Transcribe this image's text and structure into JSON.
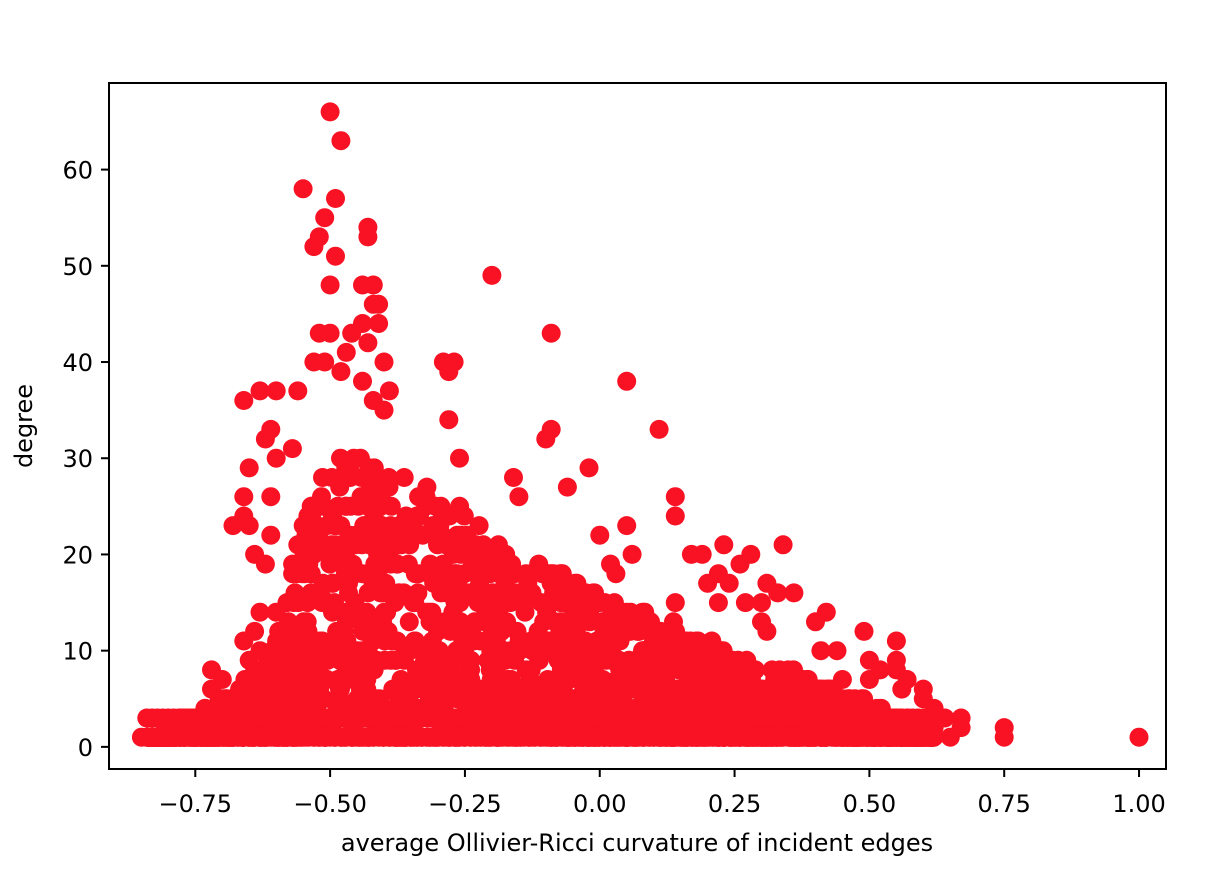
{
  "chart_data": {
    "type": "scatter",
    "title": "",
    "xlabel": "average Ollivier-Ricci curvature of incident edges",
    "ylabel": "degree",
    "xlim": [
      -0.91,
      1.05
    ],
    "ylim": [
      -2.3,
      69
    ],
    "x_ticks": [
      -0.75,
      -0.5,
      -0.25,
      0.0,
      0.25,
      0.5,
      0.75,
      1.0
    ],
    "x_tick_labels": [
      "−0.75",
      "−0.50",
      "−0.25",
      "0.00",
      "0.25",
      "0.50",
      "0.75",
      "1.00"
    ],
    "y_ticks": [
      0,
      10,
      20,
      30,
      40,
      50,
      60
    ],
    "y_tick_labels": [
      "0",
      "10",
      "20",
      "30",
      "40",
      "50",
      "60"
    ],
    "grid": false,
    "legend": "none",
    "marker_color": "#f81223",
    "outliers": [
      [
        -0.5,
        66
      ],
      [
        -0.48,
        63
      ],
      [
        -0.55,
        58
      ],
      [
        -0.49,
        57
      ],
      [
        -0.51,
        55
      ],
      [
        -0.52,
        53
      ],
      [
        -0.53,
        52
      ],
      [
        -0.43,
        54
      ],
      [
        -0.43,
        53
      ],
      [
        -0.49,
        51
      ],
      [
        -0.5,
        48
      ],
      [
        -0.44,
        48
      ],
      [
        -0.42,
        48
      ],
      [
        -0.42,
        46
      ],
      [
        -0.41,
        46
      ],
      [
        -0.41,
        44
      ],
      [
        -0.44,
        44
      ],
      [
        -0.46,
        43
      ],
      [
        -0.52,
        43
      ],
      [
        -0.5,
        43
      ],
      [
        -0.47,
        41
      ],
      [
        -0.43,
        42
      ],
      [
        -0.4,
        40
      ],
      [
        -0.53,
        40
      ],
      [
        -0.51,
        40
      ],
      [
        -0.48,
        39
      ],
      [
        -0.44,
        38
      ],
      [
        -0.2,
        49
      ],
      [
        -0.09,
        43
      ],
      [
        0.05,
        38
      ],
      [
        0.11,
        33
      ],
      [
        -0.29,
        40
      ],
      [
        -0.27,
        40
      ],
      [
        -0.28,
        39
      ],
      [
        -0.6,
        37
      ],
      [
        -0.63,
        37
      ],
      [
        -0.56,
        37
      ],
      [
        -0.66,
        36
      ],
      [
        -0.39,
        37
      ],
      [
        -0.42,
        36
      ],
      [
        -0.4,
        35
      ],
      [
        -0.62,
        32
      ],
      [
        -0.61,
        33
      ],
      [
        -0.6,
        30
      ],
      [
        -0.57,
        31
      ],
      [
        -0.65,
        29
      ],
      [
        -0.28,
        34
      ],
      [
        -0.26,
        30
      ],
      [
        -0.09,
        33
      ],
      [
        -0.1,
        32
      ],
      [
        -0.02,
        29
      ],
      [
        -0.06,
        27
      ],
      [
        -0.16,
        28
      ],
      [
        -0.15,
        26
      ],
      [
        -0.66,
        26
      ],
      [
        -0.61,
        26
      ],
      [
        -0.66,
        24
      ],
      [
        -0.68,
        23
      ],
      [
        -0.65,
        23
      ],
      [
        -0.61,
        22
      ],
      [
        -0.64,
        20
      ],
      [
        -0.62,
        19
      ],
      [
        -0.56,
        21
      ],
      [
        0.14,
        26
      ],
      [
        0.14,
        24
      ],
      [
        0.05,
        23
      ],
      [
        0.06,
        20
      ],
      [
        0.0,
        22
      ],
      [
        0.17,
        20
      ],
      [
        0.19,
        20
      ],
      [
        0.23,
        21
      ],
      [
        0.34,
        21
      ],
      [
        0.28,
        20
      ],
      [
        0.26,
        19
      ],
      [
        0.02,
        19
      ],
      [
        0.03,
        18
      ],
      [
        0.22,
        18
      ],
      [
        0.2,
        17
      ],
      [
        0.24,
        17
      ],
      [
        0.31,
        17
      ],
      [
        0.33,
        16
      ],
      [
        0.36,
        16
      ],
      [
        0.14,
        15
      ],
      [
        0.22,
        15
      ],
      [
        0.27,
        15
      ],
      [
        0.3,
        15
      ],
      [
        0.42,
        14
      ],
      [
        0.4,
        13
      ],
      [
        0.49,
        12
      ],
      [
        0.55,
        11
      ],
      [
        0.3,
        13
      ],
      [
        0.31,
        12
      ],
      [
        -0.58,
        15
      ],
      [
        -0.6,
        14
      ],
      [
        -0.63,
        14
      ],
      [
        -0.64,
        12
      ],
      [
        -0.66,
        11
      ],
      [
        -0.63,
        10
      ],
      [
        -0.65,
        9
      ],
      [
        -0.72,
        8
      ],
      [
        -0.7,
        7
      ],
      [
        -0.72,
        6
      ],
      [
        0.41,
        10
      ],
      [
        0.44,
        10
      ],
      [
        0.5,
        9
      ],
      [
        0.52,
        8
      ],
      [
        0.55,
        9
      ],
      [
        0.55,
        8
      ],
      [
        0.57,
        7
      ],
      [
        0.6,
        5
      ],
      [
        0.62,
        4
      ],
      [
        0.64,
        3
      ],
      [
        0.67,
        3
      ],
      [
        0.67,
        2
      ],
      [
        0.75,
        2
      ],
      [
        0.75,
        1
      ],
      [
        1.0,
        1
      ],
      [
        -0.85,
        1
      ],
      [
        -0.83,
        1
      ],
      [
        -0.8,
        2
      ],
      [
        -0.78,
        2
      ],
      [
        -0.75,
        2
      ],
      [
        -0.74,
        3
      ],
      [
        0.56,
        6
      ],
      [
        0.6,
        6
      ],
      [
        0.5,
        7
      ],
      [
        0.45,
        7
      ],
      [
        0.62,
        2
      ],
      [
        0.65,
        1
      ],
      [
        0.58,
        1
      ]
    ],
    "density_band": {
      "x_min": -0.84,
      "x_max": 0.62,
      "ceiling": [
        [
          -0.84,
          1
        ],
        [
          -0.8,
          2
        ],
        [
          -0.76,
          3
        ],
        [
          -0.72,
          4
        ],
        [
          -0.68,
          6
        ],
        [
          -0.64,
          8
        ],
        [
          -0.6,
          11
        ],
        [
          -0.58,
          16
        ],
        [
          -0.56,
          22
        ],
        [
          -0.53,
          27
        ],
        [
          -0.5,
          30
        ],
        [
          -0.47,
          31
        ],
        [
          -0.44,
          30
        ],
        [
          -0.4,
          30
        ],
        [
          -0.36,
          29
        ],
        [
          -0.32,
          28
        ],
        [
          -0.28,
          26
        ],
        [
          -0.24,
          24
        ],
        [
          -0.2,
          22
        ],
        [
          -0.16,
          20
        ],
        [
          -0.12,
          19
        ],
        [
          -0.08,
          18
        ],
        [
          -0.04,
          17
        ],
        [
          0.0,
          16
        ],
        [
          0.04,
          15
        ],
        [
          0.08,
          14
        ],
        [
          0.12,
          13
        ],
        [
          0.16,
          12
        ],
        [
          0.2,
          11
        ],
        [
          0.24,
          10
        ],
        [
          0.28,
          9
        ],
        [
          0.32,
          8
        ],
        [
          0.36,
          8
        ],
        [
          0.4,
          7
        ],
        [
          0.44,
          6
        ],
        [
          0.48,
          5
        ],
        [
          0.52,
          4
        ],
        [
          0.56,
          3
        ],
        [
          0.6,
          2
        ],
        [
          0.62,
          1
        ]
      ],
      "count": 2600
    }
  }
}
